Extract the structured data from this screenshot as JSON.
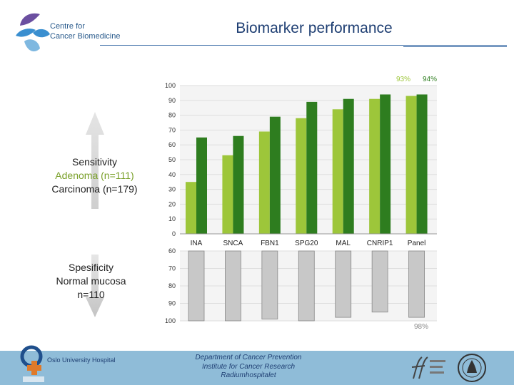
{
  "header": {
    "org_line1": "Centre for",
    "org_line2": "Cancer Biomedicine",
    "title": "Biomarker performance"
  },
  "sensitivity": {
    "label": "Sensitivity",
    "adenoma": "Adenoma (n=111)",
    "carcinoma": "Carcinoma (n=179)"
  },
  "specificity": {
    "label": "Spesificity",
    "group": "Normal mucosa",
    "n": "n=110"
  },
  "footer": {
    "hospital": "Oslo University Hospital",
    "dept_line1": "Department of Cancer Prevention",
    "dept_line2": "Institute for Cancer Research",
    "dept_line3": "Radiumhospitalet"
  },
  "colors": {
    "adenoma": "#9dc63a",
    "carcinoma": "#2e7d1f",
    "specificity": "#c8c8c8",
    "title": "#1f3f73",
    "footer": "#8fbcd8"
  },
  "chart_data": {
    "type": "bar",
    "categories": [
      "INA",
      "SNCA",
      "FBN1",
      "SPG20",
      "MAL",
      "CNRIP1",
      "Panel"
    ],
    "sensitivity": {
      "ylim": [
        0,
        100
      ],
      "yticks": [
        "0",
        "10",
        "20",
        "30",
        "40",
        "50",
        "60",
        "70",
        "80",
        "90",
        "100"
      ],
      "series": [
        {
          "name": "Adenoma (n=111)",
          "values": [
            35,
            53,
            69,
            78,
            84,
            91,
            93
          ]
        },
        {
          "name": "Carcinoma (n=179)",
          "values": [
            65,
            66,
            79,
            89,
            91,
            94,
            94
          ]
        }
      ],
      "annotations": [
        "93%",
        "94%"
      ]
    },
    "specificity": {
      "ylim": [
        60,
        100
      ],
      "yticks": [
        "60",
        "70",
        "80",
        "90",
        "100"
      ],
      "series": [
        {
          "name": "Normal mucosa",
          "values": [
            100,
            100,
            99,
            100,
            98,
            95,
            98
          ]
        }
      ],
      "annotations": [
        "98%"
      ]
    }
  }
}
